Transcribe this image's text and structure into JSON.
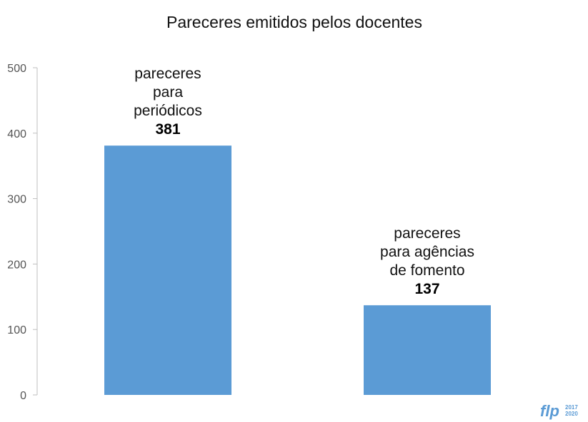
{
  "chart_data": {
    "type": "bar",
    "title": "Pareceres emitidos pelos docentes",
    "xlabel": "",
    "ylabel": "",
    "ylim": [
      0,
      500
    ],
    "yticks": [
      0,
      100,
      200,
      300,
      400,
      500
    ],
    "grid": false,
    "legend": "none",
    "categories": [
      [
        "pareceres",
        "para",
        "periódicos"
      ],
      [
        "pareceres",
        "para agências",
        "de fomento"
      ]
    ],
    "values": [
      381,
      137
    ],
    "bar_color": "#5b9bd5"
  },
  "logo": {
    "text": "flp",
    "years": [
      "2017",
      "2020"
    ],
    "color": "#5b9bd5"
  }
}
